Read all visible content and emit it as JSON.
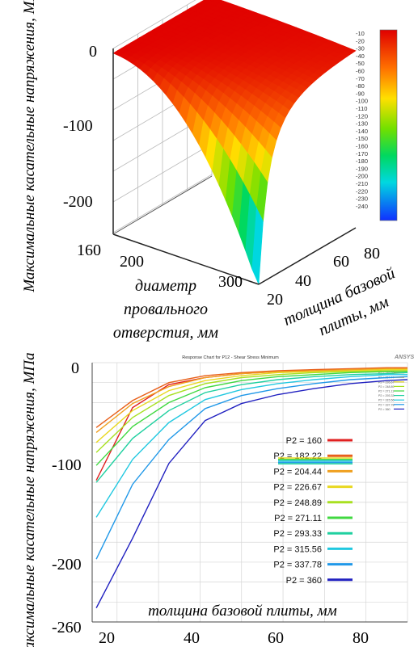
{
  "surface_chart": {
    "type": "surface",
    "z_label": "Максимальные касательные напряжения,  МПа",
    "x_label_line1": "диаметр",
    "x_label_line2": "провального",
    "x_label_line3": "отверстия, мм",
    "y_label_line1": "толщина базовой",
    "y_label_line2": "плиты, мм",
    "z_ticks": [
      "0",
      "-100",
      "-200"
    ],
    "x_ticks": [
      "160",
      "200",
      "300"
    ],
    "y_ticks": [
      "20",
      "40",
      "60",
      "80"
    ],
    "colorbar_ticks": [
      "-10",
      "-20",
      "-30",
      "-40",
      "-50",
      "-60",
      "-70",
      "-80",
      "-90",
      "-100",
      "-110",
      "-120",
      "-130",
      "-140",
      "-150",
      "-160",
      "-170",
      "-180",
      "-190",
      "-200",
      "-210",
      "-220",
      "-230",
      "-240"
    ],
    "colorbar_range": [
      -250,
      -5
    ],
    "colors": {
      "high": "#d40000",
      "mid": "#ffd200",
      "low": "#1a3cff"
    }
  },
  "chart_data": {
    "type": "line",
    "title": "Response Chart for P12 - Shear Stress Minimum",
    "corner_logo": "ANSYS",
    "ylabel": "Максимальные касательные напряжения,  МПа",
    "xlabel": "толщина базовой плиты, мм",
    "xlim": [
      14,
      90
    ],
    "ylim": [
      -260,
      0
    ],
    "x_ticks": [
      "20",
      "40",
      "60",
      "80"
    ],
    "y_ticks": [
      "0",
      "-100",
      "-200",
      "-260"
    ],
    "x": [
      15,
      23.75,
      32.5,
      41.25,
      50,
      58.75,
      67.5,
      76.25,
      85,
      90
    ],
    "series": [
      {
        "name": "P2 = 160",
        "color": "#e02020",
        "values": [
          -118,
          -45,
          -22,
          -15,
          -11,
          -9,
          -8,
          -7,
          -6,
          -6
        ]
      },
      {
        "name": "P2 = 182.22",
        "color": "#e8601a",
        "values": [
          -65,
          -38,
          -20,
          -13,
          -10,
          -8,
          -7,
          -6,
          -5,
          -5
        ]
      },
      {
        "name": "P2 = 204.44",
        "color": "#f0a020",
        "values": [
          -70,
          -41,
          -24,
          -15,
          -11,
          -9,
          -8,
          -7,
          -6,
          -6
        ]
      },
      {
        "name": "P2 = 226.67",
        "color": "#e8d820",
        "values": [
          -80,
          -48,
          -28,
          -18,
          -13,
          -10,
          -9,
          -8,
          -7,
          -7
        ]
      },
      {
        "name": "P2 = 248.89",
        "color": "#a8e020",
        "values": [
          -90,
          -55,
          -33,
          -21,
          -15,
          -12,
          -10,
          -9,
          -8,
          -8
        ]
      },
      {
        "name": "P2 = 271.11",
        "color": "#40d840",
        "values": [
          -103,
          -64,
          -40,
          -25,
          -18,
          -14,
          -12,
          -10,
          -9,
          -9
        ]
      },
      {
        "name": "P2 = 293.33",
        "color": "#20d0a0",
        "values": [
          -120,
          -76,
          -48,
          -30,
          -22,
          -17,
          -14,
          -12,
          -11,
          -10
        ]
      },
      {
        "name": "P2 = 315.56",
        "color": "#20c8e0",
        "values": [
          -155,
          -97,
          -60,
          -37,
          -27,
          -21,
          -17,
          -14,
          -12,
          -12
        ]
      },
      {
        "name": "P2 = 337.78",
        "color": "#2098e8",
        "values": [
          -197,
          -122,
          -77,
          -46,
          -33,
          -26,
          -21,
          -17,
          -15,
          -14
        ]
      },
      {
        "name": "P2 = 360",
        "color": "#2020c0",
        "values": [
          -246,
          -176,
          -101,
          -58,
          -41,
          -32,
          -26,
          -21,
          -18,
          -17
        ]
      }
    ]
  }
}
